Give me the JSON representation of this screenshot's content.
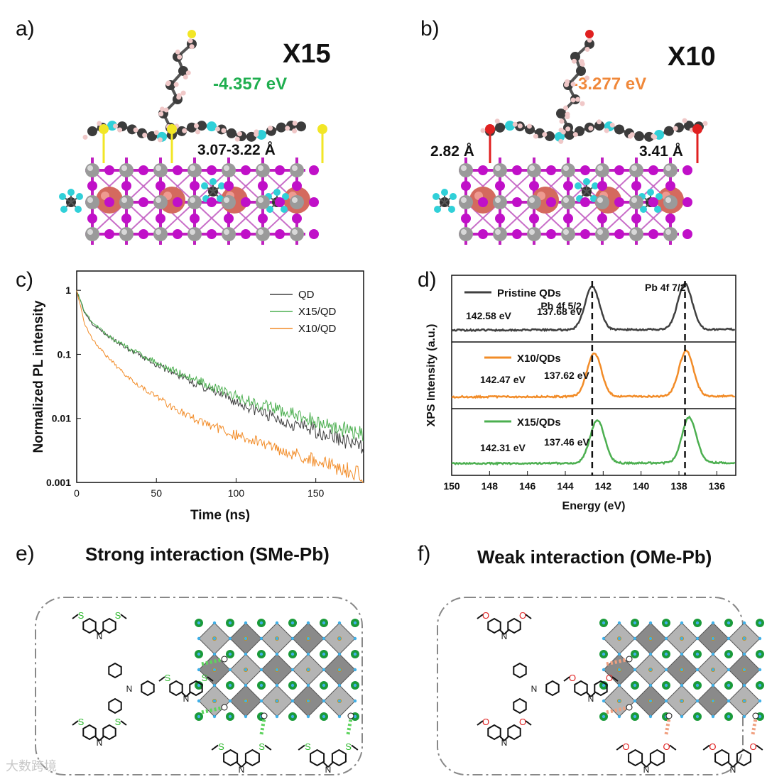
{
  "panels": {
    "a": {
      "label": "a)",
      "title": "X15",
      "energy": "-4.357 eV",
      "energy_color": "#1fae4f",
      "distance": "3.07-3.22 Å"
    },
    "b": {
      "label": "b)",
      "title": "X10",
      "energy": "-3.277 eV",
      "energy_color": "#f0883a",
      "distance_left": "2.82 Å",
      "distance_right": "3.41 Å"
    },
    "e": {
      "label": "e)",
      "title": "Strong interaction (SMe-Pb)",
      "atom": "S",
      "atom_color": "#2db82d",
      "bond_color": "#5ed35e"
    },
    "f": {
      "label": "f)",
      "title": "Weak interaction (OMe-Pb)",
      "atom": "O",
      "atom_color": "#e02020",
      "bond_color": "#f0a080"
    }
  },
  "chart_data": [
    {
      "panel": "c)",
      "type": "line",
      "xlabel": "Time (ns)",
      "ylabel": "Normalized PL intensity",
      "xlim": [
        0,
        180
      ],
      "ylim": [
        0.001,
        2
      ],
      "yscale": "log",
      "xticks": [
        "0",
        "50",
        "100",
        "150"
      ],
      "yticks": [
        "1",
        "0.1",
        "0.01",
        "0.001"
      ],
      "legend": [
        "QD",
        "X15/QD",
        "X10/QD"
      ],
      "series": [
        {
          "name": "QD",
          "color": "#404040",
          "x": [
            0,
            5,
            10,
            20,
            30,
            40,
            50,
            60,
            75,
            100,
            125,
            150,
            180
          ],
          "y": [
            1,
            0.45,
            0.3,
            0.19,
            0.13,
            0.095,
            0.07,
            0.052,
            0.035,
            0.018,
            0.01,
            0.0065,
            0.0035
          ]
        },
        {
          "name": "X15/QD",
          "color": "#4caf50",
          "x": [
            0,
            5,
            10,
            20,
            30,
            40,
            50,
            60,
            75,
            100,
            125,
            150,
            180
          ],
          "y": [
            1,
            0.46,
            0.31,
            0.195,
            0.135,
            0.1,
            0.075,
            0.057,
            0.04,
            0.022,
            0.014,
            0.009,
            0.0055
          ]
        },
        {
          "name": "X10/QD",
          "color": "#f28c28",
          "x": [
            0,
            5,
            10,
            20,
            30,
            40,
            50,
            60,
            75,
            100,
            125,
            150,
            180
          ],
          "y": [
            1,
            0.3,
            0.17,
            0.085,
            0.05,
            0.032,
            0.022,
            0.015,
            0.0095,
            0.0055,
            0.0035,
            0.0022,
            0.0013
          ]
        }
      ]
    },
    {
      "panel": "d)",
      "type": "line",
      "xlabel": "Energy (eV)",
      "ylabel": "XPS Intensity (a.u.)",
      "xlim": [
        150,
        135
      ],
      "xticks": [
        "150",
        "148",
        "146",
        "144",
        "142",
        "140",
        "138",
        "136"
      ],
      "reference_lines": [
        142.58,
        137.68
      ],
      "series": [
        {
          "name": "Pristine QDs",
          "color": "#404040",
          "peaks": [
            142.58,
            137.68
          ],
          "peak_labels": [
            "142.58 eV",
            "137.68 eV"
          ],
          "annotations": [
            "Pb 4f 5/2",
            "Pb 4f 7/2"
          ]
        },
        {
          "name": "X10/QDs",
          "color": "#f28c28",
          "peaks": [
            142.47,
            137.62
          ],
          "peak_labels": [
            "142.47 eV",
            "137.62 eV"
          ]
        },
        {
          "name": "X15/QDs",
          "color": "#4caf50",
          "peaks": [
            142.31,
            137.46
          ],
          "peak_labels": [
            "142.31 eV",
            "137.46 eV"
          ]
        }
      ]
    }
  ],
  "watermark": "大数跨境"
}
